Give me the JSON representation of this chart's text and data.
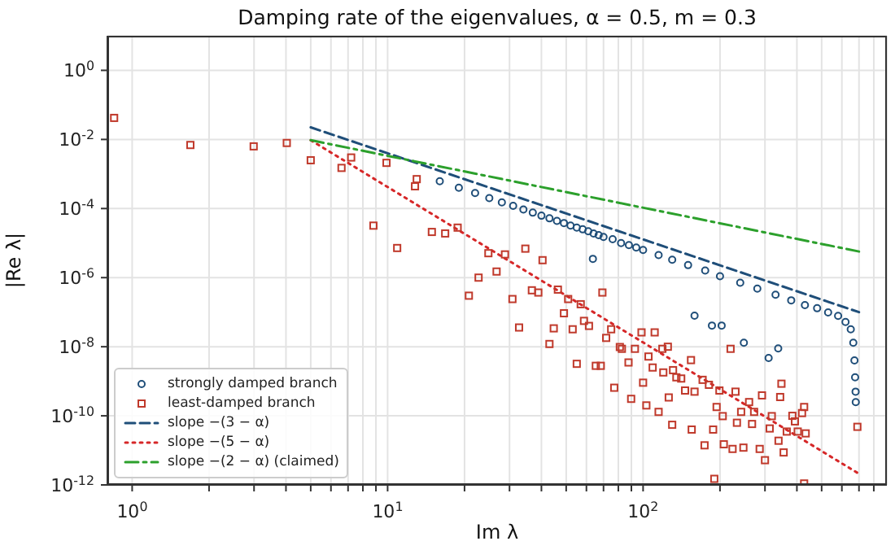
{
  "chart_data": {
    "type": "scatter",
    "title": "Damping rate of the eigenvalues, α = 0.5, m = 0.3",
    "xlabel": "Im λ",
    "ylabel": "|Re λ|",
    "log": "xy",
    "grid": true,
    "legend": "bottom left",
    "xlim": [
      0.8,
      900
    ],
    "ylim": [
      1e-12,
      10
    ],
    "xticks": [
      {
        "value": 1,
        "label": "10$^{0}$"
      },
      {
        "value": 2,
        "label": null
      },
      {
        "value": 3,
        "label": null
      },
      {
        "value": 4,
        "label": null
      },
      {
        "value": 5,
        "label": null
      },
      {
        "value": 6,
        "label": null
      },
      {
        "value": 7,
        "label": null
      },
      {
        "value": 8,
        "label": null
      },
      {
        "value": 9,
        "label": null
      },
      {
        "value": 10,
        "label": "10$^{1}$"
      },
      {
        "value": 20,
        "label": null
      },
      {
        "value": 30,
        "label": null
      },
      {
        "value": 40,
        "label": null
      },
      {
        "value": 50,
        "label": null
      },
      {
        "value": 60,
        "label": null
      },
      {
        "value": 70,
        "label": null
      },
      {
        "value": 80,
        "label": null
      },
      {
        "value": 90,
        "label": null
      },
      {
        "value": 100,
        "label": "10$^{2}$"
      },
      {
        "value": 200,
        "label": null
      },
      {
        "value": 300,
        "label": null
      },
      {
        "value": 400,
        "label": null
      },
      {
        "value": 500,
        "label": null
      },
      {
        "value": 600,
        "label": null
      },
      {
        "value": 700,
        "label": null
      },
      {
        "value": 800,
        "label": null
      }
    ],
    "yticks": [
      {
        "value": 1e-12,
        "label": "10$^{-12}$"
      },
      {
        "value": 1e-10,
        "label": "10$^{-10}$"
      },
      {
        "value": 1e-08,
        "label": "10$^{-8}$"
      },
      {
        "value": 1e-06,
        "label": "10$^{-6}$"
      },
      {
        "value": 0.0001,
        "label": "10$^{-4}$"
      },
      {
        "value": 0.01,
        "label": "10$^{-2}$"
      },
      {
        "value": 1,
        "label": "10$^{0}$"
      }
    ],
    "series": [
      {
        "name": "strongly damped branch",
        "type": "scatter",
        "marker": "circle",
        "color": "#1f4e79",
        "x": [
          16,
          19,
          22,
          25,
          28,
          31,
          34,
          37,
          40,
          43,
          46,
          49,
          52,
          55,
          58,
          61,
          64,
          67,
          70,
          76,
          82,
          88,
          94,
          100,
          115,
          130,
          150,
          175,
          200,
          240,
          280,
          330,
          380,
          430,
          480,
          530,
          580,
          620,
          650,
          665,
          672,
          676,
          679,
          680,
          63.6,
          159,
          186,
          203,
          248,
          310,
          338
        ],
        "values": [
          0.00062,
          0.0004,
          0.00028,
          0.0002,
          0.00015,
          0.00012,
          9.4e-05,
          7.6e-05,
          6.2e-05,
          5.2e-05,
          4.4e-05,
          3.8e-05,
          3.2e-05,
          2.8e-05,
          2.5e-05,
          2.2e-05,
          1.9e-05,
          1.7e-05,
          1.5e-05,
          1.3e-05,
          1e-05,
          8.7e-06,
          7.4e-06,
          6.3e-06,
          4.5e-06,
          3.3e-06,
          2.3e-06,
          1.6e-06,
          1.1e-06,
          7.1e-07,
          4.8e-07,
          3.2e-07,
          2.2e-07,
          1.6e-07,
          1.3e-07,
          9.8e-08,
          7.8e-08,
          5.2e-08,
          3.2e-08,
          1.3e-08,
          4e-09,
          1.3e-09,
          5e-10,
          2.5e-10,
          3.5e-06,
          7.9e-08,
          4.1e-08,
          4.1e-08,
          1.3e-08,
          4.7e-09,
          8.9e-09
        ]
      },
      {
        "name": "least-damped branch",
        "type": "scatter",
        "marker": "square",
        "color": "#c0392b",
        "x": [
          0.85,
          1.69,
          2.99,
          4.03,
          5.0,
          6.6,
          7.2,
          9.9,
          13.0,
          12.8,
          8.8,
          10.9,
          14.9,
          16.8,
          18.8,
          24.8,
          28.8,
          34.6,
          40.4,
          26.7,
          22.7,
          20.8,
          30.8,
          36.7,
          38.9,
          46.4,
          50.9,
          57,
          69.3,
          49,
          32.7,
          44.7,
          53,
          58.7,
          61.4,
          43,
          55,
          65.3,
          68.3,
          71.7,
          75,
          81.1,
          77.1,
          82.6,
          87.7,
          89.8,
          92.9,
          98.6,
          100,
          103,
          105,
          111,
          109,
          115,
          119,
          125,
          120,
          126,
          130,
          131,
          135,
          141,
          146,
          154,
          155,
          159,
          171,
          174,
          181,
          188,
          190,
          194,
          199,
          205,
          207,
          220,
          224,
          230,
          233,
          242,
          247,
          260,
          267,
          272,
          286,
          292,
          300,
          313,
          319,
          344,
          348,
          339,
          355,
          365,
          384,
          393,
          403,
          419,
          427,
          433,
          427,
          690
        ],
        "values": [
          0.042,
          0.0069,
          0.0063,
          0.0079,
          0.0025,
          0.0015,
          0.003,
          0.0021,
          0.00071,
          0.00044,
          3.2e-05,
          7.2e-06,
          2.1e-05,
          1.9e-05,
          2.8e-05,
          5.1e-06,
          4.7e-06,
          6.9e-06,
          3.2e-06,
          1.5e-06,
          1e-06,
          3e-07,
          2.4e-07,
          4.3e-07,
          3.7e-07,
          4.5e-07,
          2.4e-07,
          1.7e-07,
          3.7e-07,
          9.3e-08,
          3.6e-08,
          3.4e-08,
          3.2e-08,
          5.6e-08,
          4e-08,
          1.2e-08,
          3.2e-09,
          2.8e-09,
          2.8e-09,
          1.8e-08,
          3.2e-08,
          9.8e-09,
          6.5e-10,
          8.7e-09,
          3.5e-09,
          3.1e-10,
          8.7e-09,
          2.6e-08,
          9.1e-10,
          2e-10,
          5.2e-09,
          2.6e-08,
          2.5e-09,
          1.3e-10,
          8.7e-09,
          1e-08,
          1.8e-09,
          3.4e-10,
          5.5e-11,
          2.1e-09,
          1.3e-09,
          1.2e-09,
          5.4e-10,
          4.1e-09,
          4e-11,
          5e-10,
          1.1e-09,
          1.4e-11,
          7.9e-10,
          4e-11,
          1.5e-12,
          1.8e-10,
          5.4e-10,
          9.8e-11,
          1.5e-11,
          8.7e-09,
          1.1e-11,
          5e-10,
          6.3e-11,
          1.3e-10,
          1.2e-11,
          2.5e-10,
          5.8e-11,
          1.3e-10,
          1.1e-11,
          3.9e-10,
          5.2e-12,
          4.3e-11,
          9.8e-11,
          3.5e-10,
          8.5e-10,
          1.9e-11,
          8.7e-12,
          3.5e-11,
          1e-10,
          6.9e-11,
          3.5e-11,
          1.2e-10,
          1.8e-10,
          3.1e-11,
          1.1e-12,
          4.8e-11
        ]
      },
      {
        "name": "slope −(3 − α)",
        "type": "line",
        "marker": "none",
        "line_style": "dashed",
        "color": "#1f4e79",
        "x": [
          5,
          700
        ],
        "values": [
          0.0224,
          1e-07
        ]
      },
      {
        "name": "slope −(5 − α)",
        "type": "line",
        "marker": "none",
        "line_style": "dotted",
        "color": "#d62728",
        "x": [
          5,
          700
        ],
        "values": [
          0.0095,
          2.1e-12
        ]
      },
      {
        "name": "slope −(2 − α) (claimed)",
        "type": "line",
        "marker": "none",
        "line_style": "dashdot",
        "color": "#2ca02c",
        "x": [
          5,
          700
        ],
        "values": [
          0.0095,
          5.7e-06
        ]
      }
    ]
  }
}
